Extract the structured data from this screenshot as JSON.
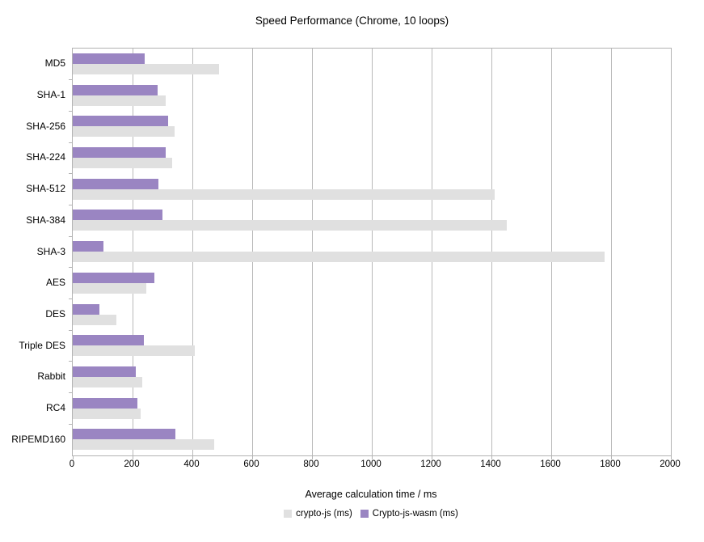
{
  "title": "Speed Performance (Chrome, 10 loops)",
  "chart_data": {
    "type": "bar",
    "orientation": "horizontal",
    "title": "Speed Performance (Chrome, 10 loops)",
    "xlabel": "Average calculation time / ms",
    "ylabel": "",
    "xlim": [
      0,
      2000
    ],
    "xticks": [
      0,
      200,
      400,
      600,
      800,
      1000,
      1200,
      1400,
      1600,
      1800,
      2000
    ],
    "grid": "vertical",
    "legend_position": "bottom",
    "categories": [
      "MD5",
      "SHA-1",
      "SHA-256",
      "SHA-224",
      "SHA-512",
      "SHA-384",
      "SHA-3",
      "AES",
      "DES",
      "Triple DES",
      "Rabbit",
      "RC4",
      "RIPEMD160"
    ],
    "series": [
      {
        "name": "crypto-js (ms)",
        "color": "#e0e0e0",
        "values": [
          490,
          312,
          340,
          333,
          1410,
          1452,
          1778,
          246,
          146,
          407,
          233,
          226,
          474
        ]
      },
      {
        "name": "Crypto-js-wasm (ms)",
        "color": "#9a85c2",
        "values": [
          241,
          284,
          318,
          310,
          287,
          299,
          102,
          273,
          89,
          237,
          211,
          216,
          344
        ]
      }
    ],
    "bar_render_order_note": "wasm (purple) bar drawn above crypto-js (gray) bar within each category"
  }
}
